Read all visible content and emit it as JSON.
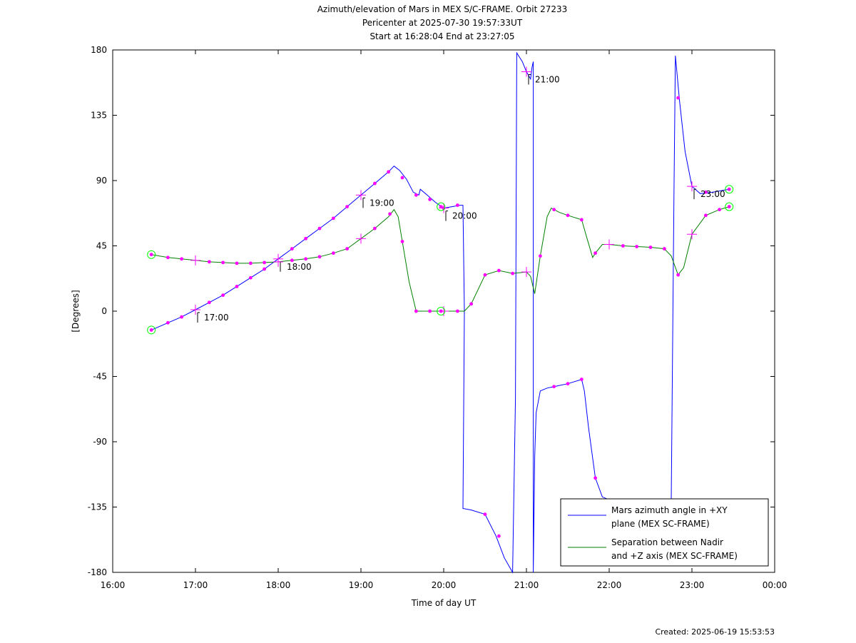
{
  "chart_data": {
    "type": "line",
    "title": [
      "Azimuth/elevation of Mars in MEX S/C-FRAME.  Orbit 27233",
      "Pericenter at 2025-07-30 19:57:33UT",
      "Start at 16:28:04 End at 23:27:05"
    ],
    "xlabel": "Time of day UT",
    "ylabel": "[Degrees]",
    "xlim": [
      16.0,
      24.0
    ],
    "ylim": [
      -180,
      180
    ],
    "x_ticks": [
      {
        "value": 16,
        "label": "16:00"
      },
      {
        "value": 17,
        "label": "17:00"
      },
      {
        "value": 18,
        "label": "18:00"
      },
      {
        "value": 19,
        "label": "19:00"
      },
      {
        "value": 20,
        "label": "20:00"
      },
      {
        "value": 21,
        "label": "21:00"
      },
      {
        "value": 22,
        "label": "22:00"
      },
      {
        "value": 23,
        "label": "23:00"
      },
      {
        "value": 24,
        "label": "00:00"
      }
    ],
    "y_ticks": [
      {
        "value": 180,
        "label": "180"
      },
      {
        "value": 135,
        "label": "135"
      },
      {
        "value": 90,
        "label": "90"
      },
      {
        "value": 45,
        "label": "45"
      },
      {
        "value": 0,
        "label": "0"
      },
      {
        "value": -45,
        "label": "-45"
      },
      {
        "value": -90,
        "label": "-90"
      },
      {
        "value": -135,
        "label": "-135"
      },
      {
        "value": -180,
        "label": "-180"
      }
    ],
    "legend_position": "bottom-right",
    "series": [
      {
        "name": "Mars azimuth angle in +XY plane (MEX SC-FRAME)",
        "legend_lines": [
          "Mars azimuth angle in +XY",
          "plane (MEX SC-FRAME)"
        ],
        "color": "#0000ff",
        "points": [
          [
            16.467,
            -13
          ],
          [
            16.667,
            -8
          ],
          [
            16.833,
            -4
          ],
          [
            17.0,
            1
          ],
          [
            17.167,
            6
          ],
          [
            17.333,
            11
          ],
          [
            17.5,
            17
          ],
          [
            17.667,
            23
          ],
          [
            17.833,
            29
          ],
          [
            18.0,
            36
          ],
          [
            18.167,
            43
          ],
          [
            18.333,
            50
          ],
          [
            18.5,
            57
          ],
          [
            18.667,
            64
          ],
          [
            18.833,
            72
          ],
          [
            19.0,
            80
          ],
          [
            19.167,
            88
          ],
          [
            19.333,
            96
          ],
          [
            19.4,
            100
          ],
          [
            19.467,
            97
          ],
          [
            19.55,
            91
          ],
          [
            19.633,
            82
          ],
          [
            19.7,
            80
          ],
          [
            19.717,
            84
          ],
          [
            19.8,
            80
          ],
          [
            19.9,
            75
          ],
          [
            20.0,
            71
          ],
          [
            20.1,
            72
          ],
          [
            20.2,
            73
          ],
          [
            20.233,
            73
          ],
          [
            20.25,
            0
          ],
          [
            20.233,
            -136
          ],
          [
            20.333,
            -137
          ],
          [
            20.5,
            -140
          ],
          [
            20.633,
            -155
          ],
          [
            20.733,
            -170
          ],
          [
            20.833,
            -180
          ],
          [
            20.867,
            -60
          ],
          [
            20.883,
            178
          ],
          [
            20.95,
            172
          ],
          [
            21.0,
            165
          ],
          [
            21.05,
            160
          ],
          [
            21.067,
            168
          ],
          [
            21.083,
            172
          ],
          [
            21.083,
            -180
          ],
          [
            21.1,
            -100
          ],
          [
            21.117,
            -70
          ],
          [
            21.167,
            -55
          ],
          [
            21.25,
            -53
          ],
          [
            21.333,
            -52
          ],
          [
            21.5,
            -50
          ],
          [
            21.667,
            -47
          ],
          [
            21.7,
            -55
          ],
          [
            21.75,
            -80
          ],
          [
            21.833,
            -115
          ],
          [
            21.917,
            -128
          ],
          [
            22.0,
            -130
          ],
          [
            22.75,
            -130
          ],
          [
            22.783,
            80
          ],
          [
            22.8,
            176
          ],
          [
            22.85,
            145
          ],
          [
            22.917,
            110
          ],
          [
            23.0,
            86
          ],
          [
            23.1,
            81
          ],
          [
            23.25,
            82
          ],
          [
            23.45,
            84
          ]
        ],
        "markers": [
          [
            16.667,
            -8
          ],
          [
            16.833,
            -4
          ],
          [
            17.167,
            6
          ],
          [
            17.333,
            11
          ],
          [
            17.5,
            17
          ],
          [
            17.667,
            23
          ],
          [
            17.833,
            29
          ],
          [
            18.167,
            43
          ],
          [
            18.333,
            50
          ],
          [
            18.5,
            57
          ],
          [
            18.667,
            64
          ],
          [
            18.833,
            72
          ],
          [
            19.167,
            88
          ],
          [
            19.333,
            96
          ],
          [
            19.5,
            92
          ],
          [
            19.667,
            80
          ],
          [
            19.833,
            77
          ],
          [
            20.0,
            71
          ],
          [
            20.167,
            73
          ],
          [
            20.5,
            -140
          ],
          [
            20.667,
            -155
          ],
          [
            21.333,
            -52
          ],
          [
            21.5,
            -50
          ],
          [
            21.667,
            -47
          ],
          [
            21.833,
            -115
          ],
          [
            22.833,
            147
          ],
          [
            23.167,
            82
          ]
        ],
        "hour_marks": [
          {
            "x": 17.0,
            "y": 1,
            "label": "17:00"
          },
          {
            "x": 18.0,
            "y": 36,
            "label": "18:00"
          },
          {
            "x": 19.0,
            "y": 80,
            "label": "19:00"
          },
          {
            "x": 20.0,
            "y": 71,
            "label": "20:00"
          },
          {
            "x": 21.0,
            "y": 165,
            "label": "21:00"
          },
          {
            "x": 23.0,
            "y": 86,
            "label": "23:00"
          }
        ],
        "circles": [
          [
            16.467,
            -13
          ],
          [
            19.967,
            72
          ],
          [
            23.45,
            84
          ]
        ]
      },
      {
        "name": "Separation between Nadir and +Z axis (MEX SC-FRAME)",
        "legend_lines": [
          "Separation between Nadir",
          "and +Z axis (MEX SC-FRAME)"
        ],
        "color": "#008000",
        "points": [
          [
            16.467,
            39
          ],
          [
            16.667,
            37
          ],
          [
            16.833,
            36
          ],
          [
            17.0,
            35
          ],
          [
            17.167,
            34
          ],
          [
            17.333,
            33.5
          ],
          [
            17.5,
            33
          ],
          [
            17.667,
            33
          ],
          [
            17.833,
            33.5
          ],
          [
            18.0,
            34
          ],
          [
            18.167,
            35
          ],
          [
            18.333,
            36
          ],
          [
            18.5,
            37.5
          ],
          [
            18.667,
            40
          ],
          [
            18.833,
            43
          ],
          [
            19.0,
            50
          ],
          [
            19.167,
            57
          ],
          [
            19.333,
            65
          ],
          [
            19.4,
            70
          ],
          [
            19.45,
            65
          ],
          [
            19.5,
            48
          ],
          [
            19.583,
            20
          ],
          [
            19.667,
            0
          ],
          [
            19.833,
            0
          ],
          [
            20.0,
            0
          ],
          [
            20.167,
            0
          ],
          [
            20.25,
            0
          ],
          [
            20.333,
            5
          ],
          [
            20.5,
            25
          ],
          [
            20.667,
            28
          ],
          [
            20.833,
            26
          ],
          [
            21.0,
            27
          ],
          [
            21.05,
            24
          ],
          [
            21.1,
            12
          ],
          [
            21.167,
            38
          ],
          [
            21.25,
            65
          ],
          [
            21.3,
            71
          ],
          [
            21.4,
            68
          ],
          [
            21.5,
            66
          ],
          [
            21.667,
            63
          ],
          [
            21.733,
            50
          ],
          [
            21.8,
            37
          ],
          [
            21.833,
            40
          ],
          [
            21.917,
            46
          ],
          [
            22.0,
            46
          ],
          [
            22.167,
            45
          ],
          [
            22.5,
            44
          ],
          [
            22.667,
            43
          ],
          [
            22.75,
            38
          ],
          [
            22.833,
            25
          ],
          [
            22.9,
            30
          ],
          [
            23.0,
            53
          ],
          [
            23.167,
            66
          ],
          [
            23.333,
            70
          ],
          [
            23.45,
            72
          ]
        ],
        "markers": [
          [
            16.667,
            37
          ],
          [
            16.833,
            36
          ],
          [
            17.167,
            34
          ],
          [
            17.333,
            33.5
          ],
          [
            17.5,
            33
          ],
          [
            17.667,
            33
          ],
          [
            17.833,
            33.5
          ],
          [
            18.167,
            35
          ],
          [
            18.333,
            36
          ],
          [
            18.5,
            37.5
          ],
          [
            18.667,
            40
          ],
          [
            18.833,
            43
          ],
          [
            19.167,
            57
          ],
          [
            19.35,
            67
          ],
          [
            19.5,
            48
          ],
          [
            19.667,
            0
          ],
          [
            19.833,
            0
          ],
          [
            20.167,
            0
          ],
          [
            20.333,
            5
          ],
          [
            20.5,
            25
          ],
          [
            20.667,
            28
          ],
          [
            20.833,
            26
          ],
          [
            21.167,
            38
          ],
          [
            21.333,
            70
          ],
          [
            21.5,
            66
          ],
          [
            21.667,
            63
          ],
          [
            21.833,
            40
          ],
          [
            22.167,
            45
          ],
          [
            22.333,
            44.5
          ],
          [
            22.5,
            44
          ],
          [
            22.667,
            43
          ],
          [
            22.833,
            25
          ],
          [
            23.167,
            66
          ],
          [
            23.333,
            70
          ]
        ],
        "hour_marks": [
          {
            "x": 17.0,
            "y": 35
          },
          {
            "x": 18.0,
            "y": 34
          },
          {
            "x": 19.0,
            "y": 50
          },
          {
            "x": 20.0,
            "y": 0
          },
          {
            "x": 21.0,
            "y": 27
          },
          {
            "x": 22.0,
            "y": 46
          },
          {
            "x": 23.0,
            "y": 53
          }
        ],
        "circles": [
          [
            16.467,
            39
          ],
          [
            19.967,
            0
          ],
          [
            23.45,
            72
          ]
        ]
      }
    ],
    "colors": {
      "marker": "#ff00ff",
      "circle": "#00ff00",
      "axis": "#000000"
    }
  },
  "footer": {
    "created": "Created: 2025-06-19 15:53:53"
  }
}
